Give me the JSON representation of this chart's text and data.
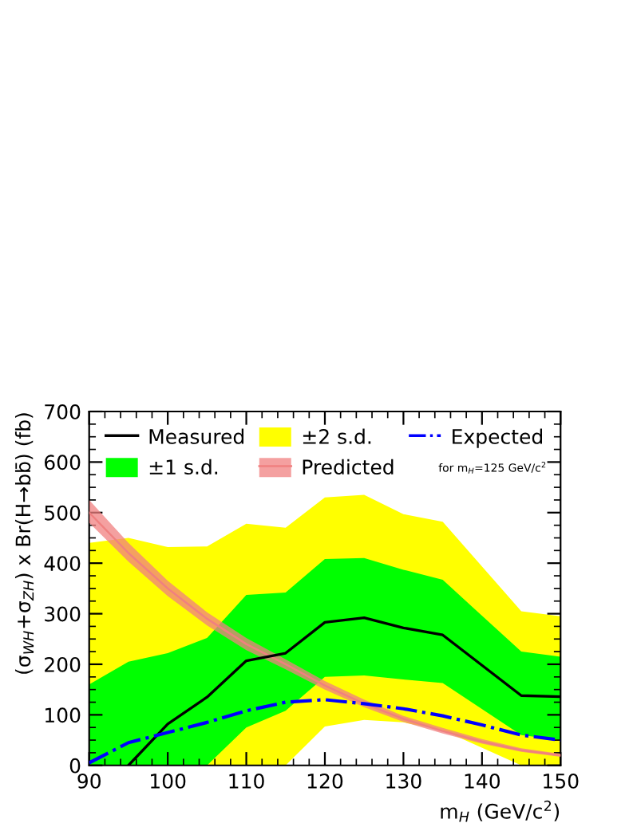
{
  "chart_data": {
    "type": "line",
    "xlabel": "m$_{H}$ (GeV/c$^{2}$)",
    "ylabel": "(σ$_{WH}$+σ$_{ZH}$) x Br(H→bb̄) (fb)",
    "xlim": [
      90,
      150
    ],
    "xticks": [
      90,
      100,
      110,
      120,
      130,
      140,
      150
    ],
    "ylim": [
      0,
      700
    ],
    "yticks": [
      0,
      100,
      200,
      300,
      400,
      500,
      600,
      700
    ],
    "grid": false,
    "legend": "top",
    "annotations": [
      "for m$_{H}$=125 GeV/c$^{2}$"
    ],
    "series": [
      {
        "name": "±2 s.d.",
        "color": "#ffff00",
        "x": [
          90,
          95,
          100,
          105,
          110,
          115,
          120,
          125,
          130,
          135,
          145,
          150
        ],
        "values": [
          null,
          null,
          null,
          null,
          null,
          null,
          null,
          null,
          null,
          null,
          null,
          null
        ],
        "lower": [
          0,
          0,
          0,
          0,
          0,
          0,
          77,
          90,
          85,
          70,
          0,
          0
        ],
        "upper": [
          440,
          450,
          432,
          433,
          478,
          470,
          530,
          535,
          497,
          482,
          305,
          295
        ]
      },
      {
        "name": "±1 s.d.",
        "color": "#00ff00",
        "x": [
          90,
          95,
          100,
          105,
          110,
          115,
          120,
          125,
          130,
          135,
          145,
          150
        ],
        "values": [
          null,
          null,
          null,
          null,
          null,
          null,
          null,
          null,
          null,
          null,
          null,
          null
        ],
        "lower": [
          0,
          0,
          0,
          0,
          75,
          108,
          175,
          178,
          170,
          163,
          60,
          50
        ],
        "upper": [
          160,
          205,
          222,
          252,
          337,
          342,
          408,
          410,
          387,
          367,
          225,
          215
        ]
      },
      {
        "name": "Predicted",
        "color": "#f08080",
        "x": [
          90,
          95,
          100,
          105,
          110,
          115,
          120,
          125,
          130,
          135,
          140,
          145,
          150
        ],
        "values": [
          500,
          420,
          350,
          290,
          240,
          200,
          158,
          122,
          92,
          68,
          47,
          30,
          20
        ],
        "lower": [
          480,
          403,
          335,
          277,
          228,
          190,
          150,
          115,
          86,
          63,
          43,
          27,
          17
        ],
        "upper": [
          525,
          440,
          365,
          303,
          252,
          210,
          167,
          130,
          98,
          74,
          52,
          34,
          23
        ]
      },
      {
        "name": "Measured",
        "color": "#000000",
        "x": [
          95,
          100,
          105,
          110,
          115,
          120,
          125,
          130,
          135,
          145,
          150
        ],
        "values": [
          0,
          82,
          135,
          207,
          222,
          283,
          292,
          272,
          258,
          138,
          136
        ]
      },
      {
        "name": "Expected",
        "color": "#0000ff",
        "line_style": "dashdot",
        "x": [
          90,
          95,
          100,
          105,
          110,
          115,
          120,
          125,
          130,
          135,
          140,
          145,
          150
        ],
        "values": [
          5,
          45,
          65,
          85,
          108,
          125,
          130,
          122,
          112,
          98,
          80,
          60,
          50
        ]
      }
    ]
  }
}
